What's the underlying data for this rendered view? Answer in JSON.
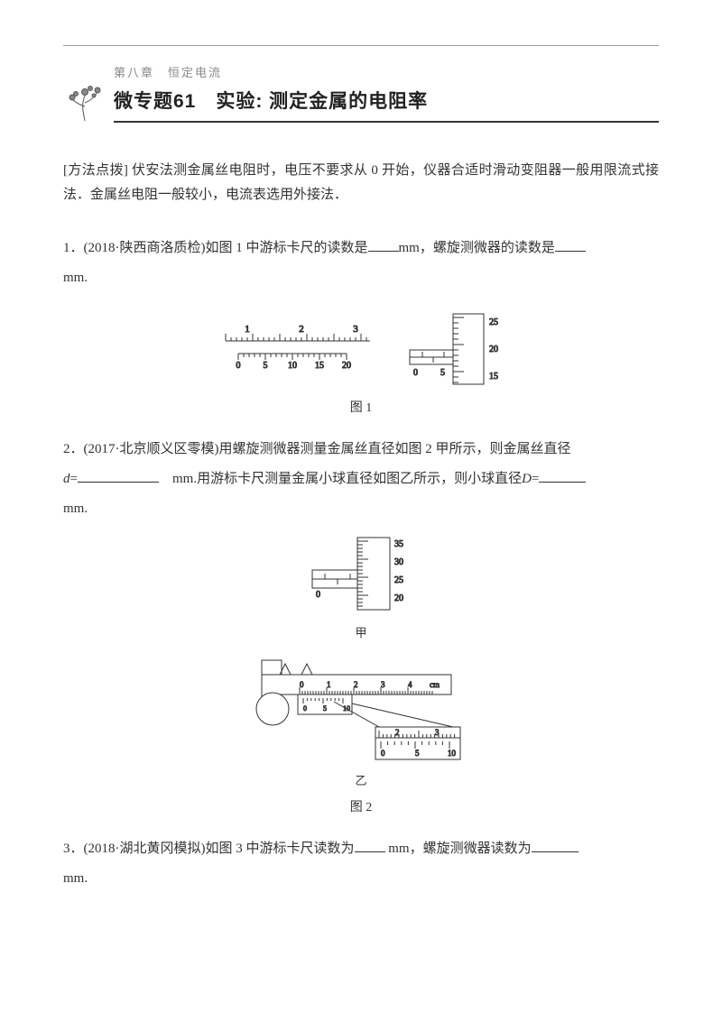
{
  "chapter": "第八章　恒定电流",
  "topic_title": "微专题61　实验: 测定金属的电阻率",
  "method": {
    "label": "[方法点拨]",
    "text": "伏安法测金属丝电阻时，电压不要求从 0 开始，仪器合适时滑动变阻器一般用限流式接法．金属丝电阻一般较小，电流表选用外接法．"
  },
  "q1": {
    "prefix": "1．(2018·陕西商洛质检)如图 1 中游标卡尺的读数是",
    "unit1": "mm，螺旋测微器的读数是",
    "unit2": "mm.",
    "vernier": {
      "main_labels": [
        "1",
        "2",
        "3"
      ],
      "sub_labels": [
        "0",
        "5",
        "10",
        "15",
        "20"
      ]
    },
    "micrometer": {
      "thimble_labels": [
        "25",
        "20",
        "15"
      ],
      "sleeve_labels": [
        "0",
        "5"
      ]
    },
    "caption": "图 1"
  },
  "q2": {
    "text_a": "2．(2017·北京顺义区零模)用螺旋测微器测量金属丝直径如图 2 甲所示，则金属丝直径",
    "var_d": "d",
    "text_b": "=",
    "unit_a": "mm.用游标卡尺测量金属小球直径如图乙所示，则小球直径",
    "var_D": "D",
    "text_c": "=",
    "unit_b": "mm.",
    "micrometer": {
      "thimble_labels": [
        "35",
        "30",
        "25",
        "20"
      ],
      "sleeve_labels": [
        "0"
      ]
    },
    "sub_label_a": "甲",
    "caliper": {
      "main_labels": [
        "0",
        "1",
        "2",
        "3",
        "4"
      ],
      "unit": "cm",
      "vernier_labels": [
        "0",
        "5",
        "10"
      ],
      "zoom_main": [
        "2",
        "3"
      ],
      "zoom_vernier": [
        "0",
        "5",
        "10"
      ]
    },
    "sub_label_b": "乙",
    "caption": "图 2"
  },
  "q3": {
    "prefix": "3．(2018·湖北黄冈模拟)如图 3 中游标卡尺读数为",
    "unit1": " mm，螺旋测微器读数为",
    "unit2": "mm."
  },
  "colors": {
    "text": "#333333",
    "light": "#888888",
    "stroke": "#333333",
    "bg": "#ffffff"
  }
}
